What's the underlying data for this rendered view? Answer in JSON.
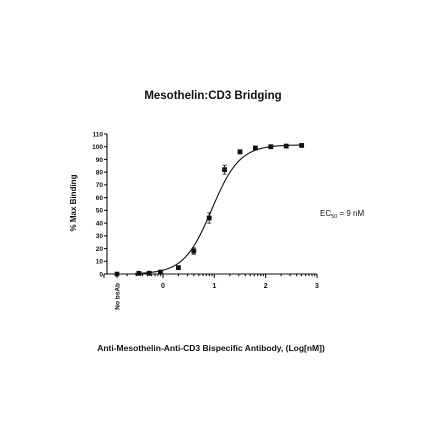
{
  "chart_data": {
    "type": "scatter",
    "title": "Mesothelin:CD3 Bridging",
    "ylabel": "% Max Binding",
    "xlabel": "Anti-Mesothelin-Anti-CD3 Bispecific Antibody, (Log[nM])",
    "ylim": [
      0,
      110
    ],
    "xlim": [
      -1.15,
      3
    ],
    "yticks": [
      0,
      10,
      20,
      30,
      40,
      50,
      60,
      70,
      80,
      90,
      100,
      110
    ],
    "xticks": [
      0,
      1,
      2,
      3
    ],
    "grid": false,
    "fit": {
      "model": "4PL",
      "bottom": 0,
      "top": 101.5,
      "logEC50": 0.95,
      "hill": 1.6
    },
    "annotation": {
      "prefix": "EC",
      "subscript": "50",
      "suffix": " = 9 nM"
    },
    "no_bsab": {
      "label": "No bsAb",
      "y": 0,
      "err": 0.8
    },
    "points": [
      {
        "x": -0.47,
        "y": 0.5,
        "err": 0.5
      },
      {
        "x": -0.27,
        "y": 0.6,
        "err": 0.5
      },
      {
        "x": -0.05,
        "y": 1.5,
        "err": 0.6
      },
      {
        "x": 0.3,
        "y": 5.0,
        "err": 1.0
      },
      {
        "x": 0.6,
        "y": 18.0,
        "err": 2.5
      },
      {
        "x": 0.9,
        "y": 44.0,
        "err": 4.0
      },
      {
        "x": 1.2,
        "y": 82.0,
        "err": 3.5
      },
      {
        "x": 1.5,
        "y": 96.0,
        "err": 1.5
      },
      {
        "x": 1.8,
        "y": 99.0,
        "err": 1.0
      },
      {
        "x": 2.1,
        "y": 100.0,
        "err": 0.8
      },
      {
        "x": 2.4,
        "y": 100.5,
        "err": 0.8
      },
      {
        "x": 2.7,
        "y": 101.0,
        "err": 0.8
      }
    ]
  }
}
